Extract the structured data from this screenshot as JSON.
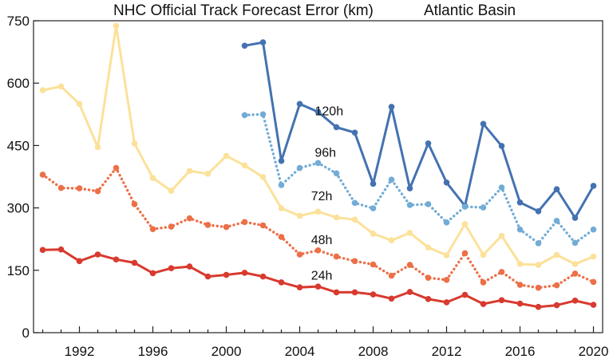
{
  "chart_data": {
    "type": "line",
    "title": "NHC Official Track Forecast Error (km)",
    "subtitle": "Atlantic Basin",
    "xlabel": "",
    "ylabel": "",
    "xlim": [
      1989.5,
      2020.5
    ],
    "ylim": [
      0,
      750
    ],
    "yticks": [
      0,
      150,
      300,
      450,
      600,
      750
    ],
    "xticks": [
      1992,
      1996,
      2000,
      2004,
      2008,
      2012,
      2016,
      2020
    ],
    "grid": false,
    "legend": "none",
    "series": [
      {
        "name": "120h",
        "color": "#4472b0",
        "dash": "solid",
        "x": [
          2001,
          2002,
          2003,
          2004,
          2005,
          2006,
          2007,
          2008,
          2009,
          2010,
          2011,
          2012,
          2013,
          2014,
          2015,
          2016,
          2017,
          2018,
          2019,
          2020
        ],
        "values": [
          690,
          698,
          413,
          550,
          531,
          494,
          481,
          358,
          543,
          347,
          455,
          361,
          305,
          502,
          449,
          313,
          292,
          345,
          276,
          353
        ]
      },
      {
        "name": "96h",
        "color": "#72acd6",
        "dash": "dotted",
        "x": [
          2001,
          2002,
          2003,
          2004,
          2005,
          2006,
          2007,
          2008,
          2009,
          2010,
          2011,
          2012,
          2013,
          2014,
          2015,
          2016,
          2017,
          2018,
          2019,
          2020
        ],
        "values": [
          523,
          525,
          355,
          396,
          408,
          383,
          312,
          299,
          368,
          307,
          309,
          265,
          303,
          301,
          349,
          248,
          215,
          269,
          216,
          248
        ]
      },
      {
        "name": "72h",
        "color": "#fbe199",
        "dash": "solid",
        "x": [
          1990,
          1991,
          1992,
          1993,
          1994,
          1995,
          1996,
          1997,
          1998,
          1999,
          2000,
          2001,
          2002,
          2003,
          2004,
          2005,
          2006,
          2007,
          2008,
          2009,
          2010,
          2011,
          2012,
          2013,
          2014,
          2015,
          2016,
          2017,
          2018,
          2019,
          2020
        ],
        "values": [
          583,
          592,
          550,
          446,
          738,
          455,
          372,
          341,
          389,
          382,
          425,
          402,
          374,
          299,
          281,
          291,
          277,
          272,
          238,
          222,
          240,
          205,
          186,
          261,
          187,
          233,
          165,
          163,
          187,
          165,
          183
        ]
      },
      {
        "name": "48h",
        "color": "#ec6f47",
        "dash": "dotted",
        "x": [
          1990,
          1991,
          1992,
          1993,
          1994,
          1995,
          1996,
          1997,
          1998,
          1999,
          2000,
          2001,
          2002,
          2003,
          2004,
          2005,
          2006,
          2007,
          2008,
          2009,
          2010,
          2011,
          2012,
          2013,
          2014,
          2015,
          2016,
          2017,
          2018,
          2019,
          2020
        ],
        "values": [
          380,
          348,
          347,
          340,
          396,
          309,
          249,
          255,
          275,
          259,
          254,
          266,
          258,
          230,
          188,
          198,
          183,
          172,
          164,
          137,
          163,
          132,
          127,
          191,
          121,
          146,
          115,
          108,
          114,
          142,
          122
        ]
      },
      {
        "name": "24h",
        "color": "#d83a2f",
        "dash": "solid",
        "x": [
          1990,
          1991,
          1992,
          1993,
          1994,
          1995,
          1996,
          1997,
          1998,
          1999,
          2000,
          2001,
          2002,
          2003,
          2004,
          2005,
          2006,
          2007,
          2008,
          2009,
          2010,
          2011,
          2012,
          2013,
          2014,
          2015,
          2016,
          2017,
          2018,
          2019,
          2020
        ],
        "values": [
          199,
          200,
          172,
          188,
          176,
          168,
          143,
          155,
          159,
          135,
          139,
          144,
          135,
          121,
          109,
          111,
          97,
          97,
          92,
          82,
          98,
          81,
          73,
          91,
          69,
          78,
          70,
          62,
          66,
          77,
          67
        ]
      }
    ]
  }
}
